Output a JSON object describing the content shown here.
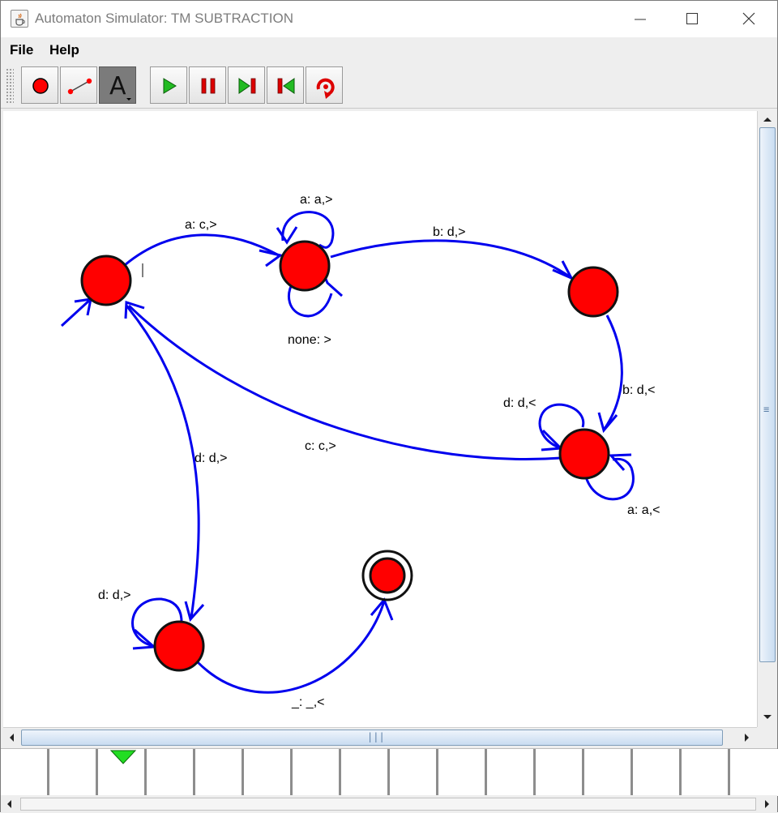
{
  "window": {
    "title": "Automaton Simulator: TM SUBTRACTION"
  },
  "menu": {
    "items": [
      "File",
      "Help"
    ]
  },
  "toolbar": {
    "tools": [
      "state-tool",
      "transition-tool",
      "label-tool"
    ],
    "active_tool": "label-tool",
    "label_tool_glyph": "A",
    "controls": [
      "run",
      "pause",
      "step-forward",
      "step-back",
      "reset"
    ],
    "colors": {
      "run": "#22bb22",
      "pause": "#dd0000",
      "state": "#ff0000",
      "transition": "#0000ee",
      "tape_head": "#22dd22"
    }
  },
  "diagram": {
    "states": [
      {
        "name": "state-q0",
        "initial": true,
        "final": false
      },
      {
        "name": "state-q1",
        "initial": false,
        "final": false
      },
      {
        "name": "state-q2",
        "initial": false,
        "final": false
      },
      {
        "name": "state-q3",
        "initial": false,
        "final": false
      },
      {
        "name": "state-q4",
        "initial": false,
        "final": false
      },
      {
        "name": "state-q5",
        "initial": false,
        "final": true
      }
    ],
    "transitions": [
      {
        "from": "q0",
        "to": "q1",
        "label": "a: c,>"
      },
      {
        "from": "q1",
        "to": "q1",
        "label": "a: a,>"
      },
      {
        "from": "q1",
        "to": "q1",
        "label": "none: >"
      },
      {
        "from": "q1",
        "to": "q2",
        "label": "b: d,>"
      },
      {
        "from": "q2",
        "to": "q3",
        "label": "b: d,<"
      },
      {
        "from": "q3",
        "to": "q3",
        "label": "d: d,<"
      },
      {
        "from": "q3",
        "to": "q3",
        "label": "a: a,<"
      },
      {
        "from": "q3",
        "to": "q0",
        "label": "c: c,>"
      },
      {
        "from": "q0",
        "to": "q4",
        "label": "d: d,>"
      },
      {
        "from": "q4",
        "to": "q4",
        "label": "d: d,>"
      },
      {
        "from": "q4",
        "to": "q5",
        "label": "_: _,<"
      }
    ]
  },
  "tape": {
    "visible_cells": 16,
    "head_index": 2
  }
}
